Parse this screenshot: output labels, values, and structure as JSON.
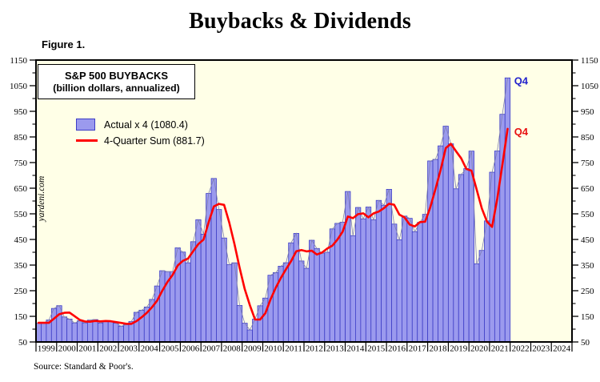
{
  "page": {
    "title": "Buybacks & Dividends",
    "figure_label": "Figure 1.",
    "watermark": "yardeni.com",
    "source": "Source: Standard & Poor's."
  },
  "info_box": {
    "line1": "S&P 500 BUYBACKS",
    "line2": "(billion dollars, annualized)"
  },
  "legend": {
    "items": [
      {
        "label": "Actual x 4 (1080.4)",
        "swatch": "bar"
      },
      {
        "label": "4-Quarter Sum (881.7)",
        "swatch": "line"
      }
    ]
  },
  "annotations": {
    "bar_end": {
      "text": "Q4",
      "color": "#2222CC"
    },
    "line_end": {
      "text": "Q4",
      "color": "#E81010"
    }
  },
  "colors": {
    "plot_bg": "#FFFFE7",
    "bar_fill": "#9B9AEE",
    "bar_border": "#3D3DC6",
    "bar_topline": "#8080B0",
    "line": "#FF0000",
    "frame": "#000000"
  },
  "chart_data": {
    "type": "bar",
    "title": "S&P 500 BUYBACKS",
    "subtitle": "(billion dollars, annualized)",
    "ylabel": "billion dollars, annualized",
    "ylim": [
      50,
      1150
    ],
    "y_ticks": [
      50,
      150,
      250,
      350,
      450,
      550,
      650,
      750,
      850,
      950,
      1050,
      1150
    ],
    "y_minor_ticks": [
      100,
      200,
      300,
      400,
      500,
      600,
      700,
      800,
      900,
      1000,
      1100
    ],
    "years": [
      1999,
      2000,
      2001,
      2002,
      2003,
      2004,
      2005,
      2006,
      2007,
      2008,
      2009,
      2010,
      2011,
      2012,
      2013,
      2014,
      2015,
      2016,
      2017,
      2018,
      2019,
      2020,
      2021,
      2022,
      2023,
      2024
    ],
    "frequency": "quarterly",
    "grid": false,
    "legend_position": "top-left",
    "series": [
      {
        "name": "Actual x 4",
        "type": "bar",
        "latest": 1080.4,
        "values": [
          122.8,
          124.4,
          135.6,
          180.8,
          191.6,
          147.6,
          139.2,
          124.4,
          132.4,
          124.4,
          135.2,
          137.2,
          124.0,
          130.8,
          131.2,
          123.6,
          111.6,
          117.6,
          129.6,
          165.6,
          174.0,
          186.4,
          216.0,
          268.4,
          328.0,
          324.4,
          324.4,
          417.2,
          400.8,
          358.8,
          441.2,
          526.8,
          470.8,
          629.6,
          688.0,
          566.8,
          455.6,
          351.6,
          358.8,
          192.4,
          123.2,
          96.8,
          139.2,
          191.2,
          221.2,
          310.4,
          320.4,
          345.6,
          359.2,
          436.8,
          473.6,
          366.0,
          337.2,
          446.8,
          414.8,
          396.4,
          400.0,
          491.2,
          512.8,
          517.6,
          637.2,
          464.8,
          574.8,
          530.4,
          576.4,
          526.4,
          602.4,
          583.6,
          645.6,
          510.0,
          448.8,
          541.2,
          532.4,
          480.4,
          516.8,
          548.0,
          756.4,
          762.4,
          815.2,
          892.0,
          823.2,
          647.6,
          703.6,
          726.4,
          794.8,
          354.8,
          407.2,
          522.4,
          712.4,
          795.2,
          938.4,
          1080.4
        ]
      },
      {
        "name": "4-Quarter Sum",
        "type": "line",
        "latest": 881.7,
        "values": [
          124.6,
          125.0,
          124.6,
          140.9,
          158.1,
          163.9,
          164.8,
          150.7,
          135.9,
          130.1,
          129.1,
          132.3,
          130.2,
          131.8,
          130.8,
          127.4,
          124.3,
          121.0,
          120.6,
          131.1,
          146.7,
          163.9,
          185.5,
          211.2,
          249.7,
          284.2,
          311.3,
          348.5,
          366.7,
          375.3,
          404.5,
          431.9,
          449.4,
          517.1,
          578.8,
          588.8,
          585.0,
          515.5,
          433.2,
          339.6,
          256.5,
          192.8,
          137.9,
          137.6,
          162.1,
          215.5,
          260.8,
          299.4,
          333.9,
          365.5,
          403.8,
          408.9,
          403.4,
          405.9,
          391.2,
          398.8,
          414.5,
          425.6,
          450.1,
          480.4,
          539.7,
          533.1,
          548.6,
          551.8,
          536.6,
          552.0,
          558.9,
          572.2,
          589.5,
          585.4,
          547.0,
          536.4,
          508.1,
          500.7,
          517.7,
          519.4,
          575.4,
          645.9,
          720.5,
          806.5,
          823.2,
          794.5,
          766.6,
          725.2,
          718.1,
          644.9,
          570.8,
          519.8,
          499.2,
          609.3,
          742.1,
          881.7
        ]
      }
    ]
  }
}
